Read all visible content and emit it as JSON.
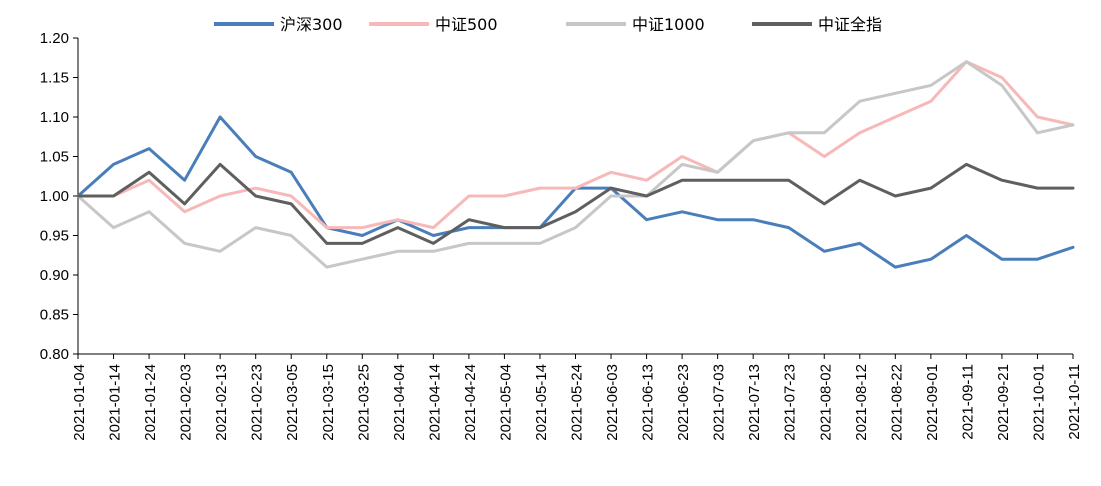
{
  "chart_data": {
    "type": "line",
    "title": "",
    "xlabel": "",
    "ylabel": "",
    "ylim": [
      0.8,
      1.2
    ],
    "yticks": [
      "0.80",
      "0.85",
      "0.90",
      "0.95",
      "1.00",
      "1.05",
      "1.10",
      "1.15",
      "1.20"
    ],
    "grid": false,
    "legend_position": "top",
    "x": [
      "2021-01-04",
      "2021-01-14",
      "2021-01-24",
      "2021-02-03",
      "2021-02-13",
      "2021-02-23",
      "2021-03-05",
      "2021-03-15",
      "2021-03-25",
      "2021-04-04",
      "2021-04-14",
      "2021-04-24",
      "2021-05-04",
      "2021-05-14",
      "2021-05-24",
      "2021-06-03",
      "2021-06-13",
      "2021-06-23",
      "2021-07-03",
      "2021-07-13",
      "2021-07-23",
      "2021-08-02",
      "2021-08-12",
      "2021-08-22",
      "2021-09-01",
      "2021-09-11",
      "2021-09-21",
      "2021-10-01",
      "2021-10-11"
    ],
    "series": [
      {
        "name": "沪深300",
        "color": "#4a7ebb",
        "values": [
          1.0,
          1.04,
          1.06,
          1.02,
          1.1,
          1.05,
          1.03,
          0.96,
          0.95,
          0.97,
          0.95,
          0.96,
          0.96,
          0.96,
          1.01,
          1.01,
          0.97,
          0.98,
          0.97,
          0.97,
          0.96,
          0.93,
          0.94,
          0.91,
          0.92,
          0.95,
          0.92,
          0.92,
          0.935
        ]
      },
      {
        "name": "中证500",
        "color": "#f7b9b7",
        "values": [
          1.0,
          1.0,
          1.02,
          0.98,
          1.0,
          1.01,
          1.0,
          0.96,
          0.96,
          0.97,
          0.96,
          1.0,
          1.0,
          1.01,
          1.01,
          1.03,
          1.02,
          1.05,
          1.03,
          1.07,
          1.08,
          1.05,
          1.08,
          1.1,
          1.12,
          1.17,
          1.15,
          1.1,
          1.09
        ]
      },
      {
        "name": "中证1000",
        "color": "#c7c7c7",
        "values": [
          1.0,
          0.96,
          0.98,
          0.94,
          0.93,
          0.96,
          0.95,
          0.91,
          0.92,
          0.93,
          0.93,
          0.94,
          0.94,
          0.94,
          0.96,
          1.0,
          1.0,
          1.04,
          1.03,
          1.07,
          1.08,
          1.08,
          1.12,
          1.13,
          1.14,
          1.17,
          1.14,
          1.08,
          1.09
        ]
      },
      {
        "name": "中证全指",
        "color": "#5f5f5f",
        "values": [
          1.0,
          1.0,
          1.03,
          0.99,
          1.04,
          1.0,
          0.99,
          0.94,
          0.94,
          0.96,
          0.94,
          0.97,
          0.96,
          0.96,
          0.98,
          1.01,
          1.0,
          1.02,
          1.02,
          1.02,
          1.02,
          0.99,
          1.02,
          1.0,
          1.01,
          1.04,
          1.02,
          1.01,
          1.01
        ]
      }
    ]
  }
}
